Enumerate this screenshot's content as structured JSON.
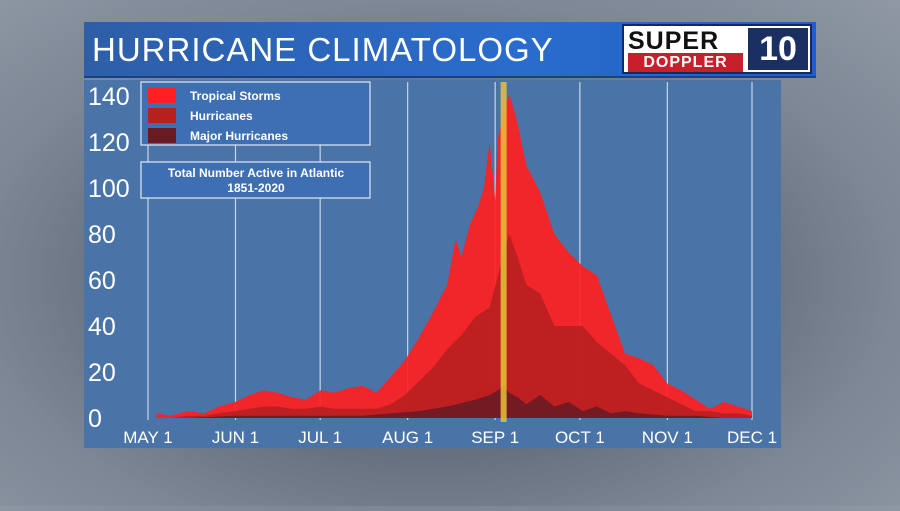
{
  "title": "HURRICANE CLIMATOLOGY",
  "logo": {
    "line1": "SUPER",
    "line2": "DOPPLER",
    "badge": "10",
    "icon_name": "wave-10-logo-icon"
  },
  "colors": {
    "title_bar": "#2a6ccd",
    "plot_bg": "#4a74a8",
    "tropical_storms": "#ff2020",
    "hurricanes": "#b82020",
    "major_hurricanes": "#6a1a22",
    "peak_marker": "#e8c23a"
  },
  "chart_data": {
    "type": "area",
    "title": "Total Number Active in Atlantic 1851-2020",
    "subtitle_line1": "Total Number Active in Atlantic",
    "subtitle_line2": "1851-2020",
    "xlabel": "",
    "ylabel": "",
    "x_tick_labels": [
      "MAY 1",
      "JUN 1",
      "JUL 1",
      "AUG 1",
      "SEP 1",
      "OCT 1",
      "NOV 1",
      "DEC 1"
    ],
    "x_tick_days": [
      0,
      31,
      61,
      92,
      123,
      153,
      184,
      214
    ],
    "y_ticks": [
      0,
      20,
      40,
      60,
      80,
      100,
      120,
      140
    ],
    "ylim": [
      0,
      145
    ],
    "xlim": [
      0,
      214
    ],
    "grid": true,
    "legend_placement": "top-left",
    "peak_marker_day": 126,
    "series": [
      {
        "name": "Tropical Storms",
        "x": [
          3,
          8,
          14,
          20,
          25,
          31,
          36,
          41,
          46,
          51,
          56,
          61,
          66,
          71,
          76,
          81,
          86,
          91,
          96,
          101,
          106,
          109,
          111,
          114,
          117,
          119,
          121,
          123,
          124,
          126,
          128,
          131,
          134,
          139,
          144,
          149,
          154,
          159,
          164,
          169,
          174,
          179,
          184,
          189,
          194,
          199,
          204,
          209,
          214
        ],
        "values": [
          2,
          1,
          3,
          2,
          5,
          7,
          10,
          12,
          11,
          9,
          8,
          12,
          11,
          13,
          14,
          11,
          18,
          25,
          35,
          46,
          58,
          78,
          70,
          84,
          92,
          100,
          120,
          95,
          122,
          132,
          141,
          128,
          110,
          98,
          80,
          72,
          66,
          62,
          45,
          28,
          26,
          23,
          15,
          12,
          8,
          4,
          7,
          5,
          3
        ]
      },
      {
        "name": "Hurricanes",
        "x": [
          3,
          8,
          14,
          20,
          25,
          31,
          36,
          41,
          46,
          51,
          56,
          61,
          66,
          71,
          76,
          81,
          86,
          91,
          96,
          101,
          106,
          111,
          116,
          121,
          124,
          126,
          128,
          131,
          134,
          139,
          144,
          149,
          154,
          159,
          164,
          169,
          174,
          179,
          184,
          189,
          194,
          199,
          204,
          209,
          214
        ],
        "values": [
          0,
          0,
          1,
          1,
          2,
          3,
          4,
          5,
          5,
          4,
          4,
          5,
          4,
          4,
          4,
          4,
          6,
          10,
          16,
          22,
          30,
          36,
          44,
          48,
          62,
          72,
          80,
          70,
          58,
          54,
          40,
          40,
          40,
          33,
          28,
          23,
          15,
          12,
          9,
          6,
          3,
          3,
          2,
          2,
          1
        ]
      },
      {
        "name": "Major Hurricanes",
        "x": [
          3,
          14,
          31,
          46,
          61,
          76,
          86,
          96,
          106,
          116,
          121,
          124,
          126,
          128,
          131,
          134,
          139,
          144,
          149,
          154,
          159,
          164,
          169,
          174,
          184,
          194,
          204,
          214
        ],
        "values": [
          0,
          0,
          1,
          1,
          1,
          1,
          2,
          3,
          5,
          8,
          10,
          12,
          14,
          11,
          9,
          6,
          10,
          5,
          7,
          3,
          5,
          2,
          3,
          2,
          1,
          1,
          0,
          0
        ]
      }
    ]
  }
}
